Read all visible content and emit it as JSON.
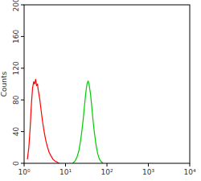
{
  "chart_data": {
    "type": "line",
    "y_label": "Counts",
    "log": "x",
    "xlim": [
      1,
      10000
    ],
    "xticks": [
      {
        "value": 1,
        "label": "10⁰"
      },
      {
        "value": 10,
        "label": "10¹"
      },
      {
        "value": 100,
        "label": "10²"
      },
      {
        "value": 1000,
        "label": "10³"
      },
      {
        "value": 10000,
        "label": "10⁴"
      }
    ],
    "ylim": [
      0,
      200
    ],
    "yticks": [
      0,
      40,
      80,
      120,
      160,
      200
    ],
    "series": [
      {
        "color": "#ff0000",
        "x": [
          1.2,
          1.3,
          1.4,
          1.5,
          1.6,
          1.7,
          1.8,
          1.9,
          2.0,
          2.1,
          2.2,
          2.4,
          2.6,
          2.8,
          3.0,
          3.3,
          3.6,
          4.0,
          4.5,
          5,
          5.5,
          6,
          7
        ],
        "values": [
          5,
          20,
          45,
          75,
          95,
          103,
          100,
          106,
          98,
          100,
          92,
          80,
          65,
          52,
          42,
          30,
          22,
          14,
          9,
          5,
          3,
          2,
          0
        ]
      },
      {
        "color": "#00cc00",
        "x": [
          15,
          17,
          19,
          21,
          23,
          25,
          27,
          29,
          31,
          33,
          35,
          37,
          40,
          43,
          46,
          50,
          55,
          60,
          65,
          70,
          80
        ],
        "values": [
          0,
          3,
          8,
          16,
          28,
          42,
          58,
          75,
          90,
          100,
          104,
          100,
          88,
          72,
          55,
          38,
          22,
          12,
          6,
          3,
          0
        ]
      }
    ]
  }
}
